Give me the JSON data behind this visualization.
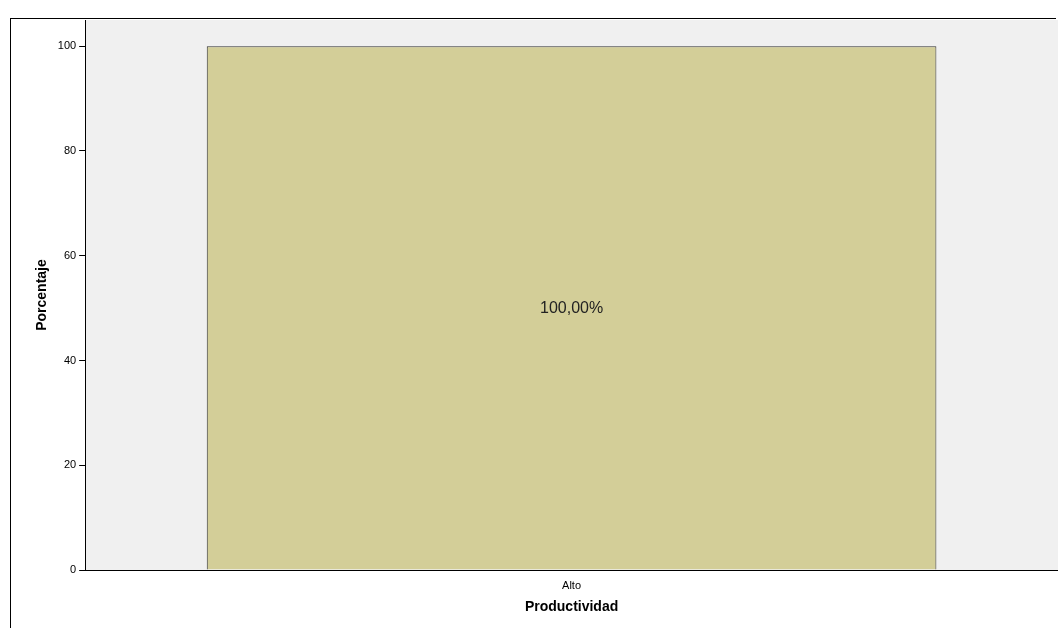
{
  "chart_data": {
    "type": "bar",
    "xlabel": "Productividad",
    "ylabel": "Porcentaje",
    "categories": [
      "Alto"
    ],
    "values": [
      100
    ],
    "value_labels": [
      "100,00%"
    ],
    "color": "#d3ce98",
    "ylim": [
      0,
      105
    ],
    "yticks": [
      0,
      20,
      40,
      60,
      80,
      100
    ],
    "grid": false,
    "legend": false
  }
}
